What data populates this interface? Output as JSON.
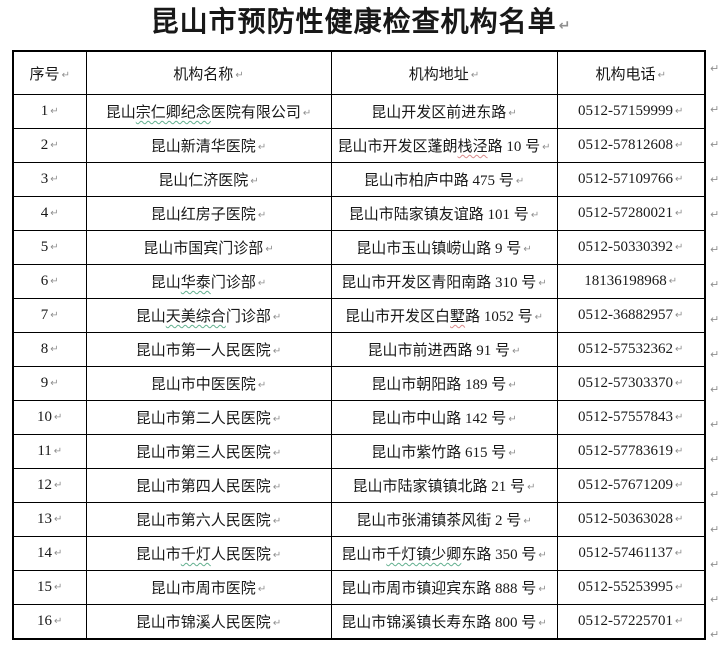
{
  "title": "昆山市预防性健康检查机构名单",
  "pilcrow": "↵",
  "colors": {
    "border": "#000000",
    "text": "#181818",
    "spellcheck_green": "#63b08f",
    "spellcheck_red": "#d98c8c",
    "paragraph_mark": "#8f8f8f"
  },
  "table": {
    "headers": [
      "序号",
      "机构名称",
      "机构地址",
      "机构电话"
    ],
    "rows": [
      {
        "no": "1",
        "name": [
          [
            "昆山",
            ""
          ],
          [
            "宗仁卿纪念",
            "green"
          ],
          [
            "医院有限公司",
            ""
          ]
        ],
        "address": [
          [
            "昆山开发区前进东路",
            ""
          ]
        ],
        "phone": "0512-57159999"
      },
      {
        "no": "2",
        "name": [
          [
            "昆山新清华医院",
            ""
          ]
        ],
        "address": [
          [
            "昆山市开发区蓬朗",
            ""
          ],
          [
            "栈泾",
            "red"
          ],
          [
            "路 10 号",
            ""
          ]
        ],
        "phone": "0512-57812608"
      },
      {
        "no": "3",
        "name": [
          [
            "昆山仁济医院",
            ""
          ]
        ],
        "address": [
          [
            "昆山市柏庐中路 475 号",
            ""
          ]
        ],
        "phone": "0512-57109766"
      },
      {
        "no": "4",
        "name": [
          [
            "昆山红房子医院",
            ""
          ]
        ],
        "address": [
          [
            "昆山市陆家镇友谊路 101 号",
            ""
          ]
        ],
        "phone": "0512-57280021"
      },
      {
        "no": "5",
        "name": [
          [
            "昆山市国宾门诊部",
            ""
          ]
        ],
        "address": [
          [
            "昆山市玉山镇崂山路 9 号",
            ""
          ]
        ],
        "phone": "0512-50330392"
      },
      {
        "no": "6",
        "name": [
          [
            "昆山",
            ""
          ],
          [
            "华泰",
            "green"
          ],
          [
            "门诊部",
            ""
          ]
        ],
        "address": [
          [
            "昆山市开发区青阳南路 310 号",
            ""
          ]
        ],
        "phone": "18136198968"
      },
      {
        "no": "7",
        "name": [
          [
            "昆山",
            ""
          ],
          [
            "天美综合",
            "green"
          ],
          [
            "门诊部",
            ""
          ]
        ],
        "address": [
          [
            "昆山市开发区白",
            ""
          ],
          [
            "墅",
            "red"
          ],
          [
            "路 1052 号",
            ""
          ]
        ],
        "phone": "0512-36882957"
      },
      {
        "no": "8",
        "name": [
          [
            "昆山市第一人民医院",
            ""
          ]
        ],
        "address": [
          [
            "昆山市前进西路 91 号",
            ""
          ]
        ],
        "phone": "0512-57532362"
      },
      {
        "no": "9",
        "name": [
          [
            "昆山市中医医院",
            ""
          ]
        ],
        "address": [
          [
            "昆山市朝阳路 189 号",
            ""
          ]
        ],
        "phone": "0512-57303370"
      },
      {
        "no": "10",
        "name": [
          [
            "昆山市第二人民医院",
            ""
          ]
        ],
        "address": [
          [
            "昆山市中山路 142 号",
            ""
          ]
        ],
        "phone": "0512-57557843"
      },
      {
        "no": "11",
        "name": [
          [
            "昆山市第三人民医院",
            ""
          ]
        ],
        "address": [
          [
            "昆山市紫竹路 615 号",
            ""
          ]
        ],
        "phone": "0512-57783619"
      },
      {
        "no": "12",
        "name": [
          [
            "昆山市第四人民医院",
            ""
          ]
        ],
        "address": [
          [
            "昆山市陆家镇镇北路 21 号",
            ""
          ]
        ],
        "phone": "0512-57671209"
      },
      {
        "no": "13",
        "name": [
          [
            "昆山市第六人民医院",
            ""
          ]
        ],
        "address": [
          [
            "昆山市张浦镇茶风街 2 号",
            ""
          ]
        ],
        "phone": "0512-50363028"
      },
      {
        "no": "14",
        "name": [
          [
            "昆山市",
            ""
          ],
          [
            "千灯",
            "green"
          ],
          [
            "人民医院",
            ""
          ]
        ],
        "address": [
          [
            "昆山市",
            ""
          ],
          [
            "千灯镇少卿",
            "green"
          ],
          [
            "东路 350 号",
            ""
          ]
        ],
        "phone": "0512-57461137"
      },
      {
        "no": "15",
        "name": [
          [
            "昆山市周市医院",
            ""
          ]
        ],
        "address": [
          [
            "昆山市周市镇迎宾东路 888 号",
            ""
          ]
        ],
        "phone": "0512-55253995"
      },
      {
        "no": "16",
        "name": [
          [
            "昆山市锦溪人民医院",
            ""
          ]
        ],
        "address": [
          [
            "昆山市锦溪镇长寿东路 800 号",
            ""
          ]
        ],
        "phone": "0512-57225701"
      }
    ]
  }
}
